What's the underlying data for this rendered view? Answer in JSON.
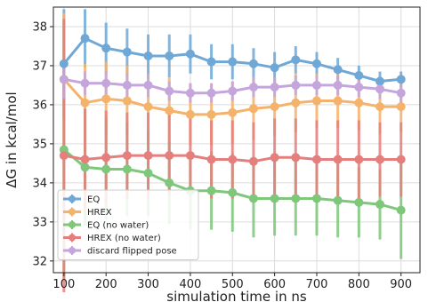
{
  "chart_data": {
    "type": "line",
    "title": "",
    "xlabel": "simulation time in ns",
    "ylabel": "ΔG in kcal/mol",
    "xlim": [
      75,
      945
    ],
    "ylim": [
      31.7,
      38.5
    ],
    "xticks": [
      100,
      200,
      300,
      400,
      500,
      600,
      700,
      800,
      900
    ],
    "yticks": [
      32,
      33,
      34,
      35,
      36,
      37,
      38
    ],
    "grid": true,
    "legend_position": "lower-left",
    "x": [
      100,
      150,
      200,
      250,
      300,
      350,
      400,
      450,
      500,
      550,
      600,
      650,
      700,
      750,
      800,
      850,
      900
    ],
    "series": [
      {
        "name": "EQ",
        "color": "#6fa8d6",
        "values": [
          37.05,
          37.7,
          37.45,
          37.35,
          37.25,
          37.25,
          37.3,
          37.1,
          37.1,
          37.05,
          36.95,
          37.15,
          37.05,
          36.9,
          36.75,
          36.6,
          36.65
        ],
        "errors": [
          1.4,
          0.75,
          0.65,
          0.6,
          0.55,
          0.55,
          0.5,
          0.45,
          0.45,
          0.4,
          0.4,
          0.35,
          0.3,
          0.3,
          0.25,
          0.25,
          0.2
        ]
      },
      {
        "name": "HREX",
        "color": "#f4b26b",
        "values": [
          36.65,
          36.05,
          36.15,
          36.1,
          35.95,
          35.85,
          35.75,
          35.75,
          35.8,
          35.9,
          35.95,
          36.05,
          36.1,
          36.1,
          36.05,
          35.95,
          35.95
        ],
        "errors": [
          1.7,
          1.0,
          0.95,
          0.9,
          0.85,
          0.85,
          0.8,
          0.8,
          0.8,
          0.8,
          0.75,
          0.75,
          0.7,
          0.7,
          0.7,
          0.7,
          0.65
        ]
      },
      {
        "name": "EQ (no water)",
        "color": "#7ec77b",
        "values": [
          34.85,
          34.4,
          34.35,
          34.35,
          34.25,
          34.0,
          33.8,
          33.8,
          33.75,
          33.6,
          33.6,
          33.6,
          33.6,
          33.55,
          33.5,
          33.45,
          33.3
        ],
        "errors": [
          3.3,
          1.5,
          1.3,
          1.2,
          1.1,
          1.05,
          1.0,
          1.0,
          1.0,
          1.0,
          0.95,
          0.95,
          0.95,
          0.95,
          0.9,
          0.9,
          1.25
        ]
      },
      {
        "name": "HREX (no water)",
        "color": "#e57f7d",
        "values": [
          34.7,
          34.6,
          34.65,
          34.7,
          34.7,
          34.7,
          34.7,
          34.6,
          34.6,
          34.55,
          34.65,
          34.65,
          34.6,
          34.6,
          34.6,
          34.6,
          34.6
        ],
        "errors": [
          3.5,
          1.3,
          1.2,
          1.1,
          1.1,
          1.05,
          1.05,
          1.0,
          1.0,
          1.0,
          1.0,
          1.0,
          1.0,
          1.0,
          1.0,
          0.95,
          0.95
        ]
      },
      {
        "name": "discard flipped pose",
        "color": "#c4a6dd",
        "values": [
          36.65,
          36.55,
          36.55,
          36.5,
          36.5,
          36.35,
          36.3,
          36.3,
          36.35,
          36.45,
          36.45,
          36.5,
          36.5,
          36.5,
          36.45,
          36.4,
          36.3
        ],
        "errors": [
          0.5,
          0.3,
          0.3,
          0.3,
          0.3,
          0.25,
          0.25,
          0.25,
          0.25,
          0.25,
          0.25,
          0.25,
          0.25,
          0.25,
          0.25,
          0.25,
          0.25
        ]
      }
    ]
  }
}
